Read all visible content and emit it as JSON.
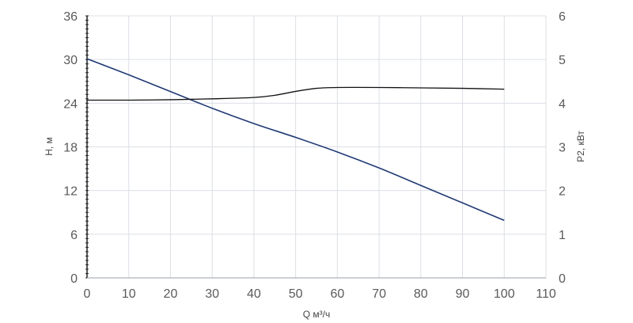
{
  "chart_data": {
    "type": "line",
    "xlabel": "Q м³/ч",
    "ylabel_left": "H, м",
    "ylabel_right": "P2, кВт",
    "x_ticks": [
      "0",
      "10",
      "20",
      "30",
      "40",
      "50",
      "60",
      "70",
      "80",
      "90",
      "100",
      "110"
    ],
    "y_left_ticks": [
      "0",
      "6",
      "12",
      "18",
      "24",
      "30",
      "36"
    ],
    "y_right_ticks": [
      "0",
      "1",
      "2",
      "3",
      "4",
      "5",
      "6"
    ],
    "xlim": [
      0,
      110
    ],
    "ylim_left": [
      0,
      36
    ],
    "ylim_right": [
      0,
      6
    ],
    "grid": true,
    "colors": {
      "head": "#1f3a77",
      "power": "#111111",
      "grid": "#dcdfe6",
      "axis": "#222222"
    },
    "series": [
      {
        "axis": "left",
        "x": [
          0,
          10,
          20,
          30,
          40,
          50,
          60,
          70,
          80,
          90,
          100
        ],
        "values": [
          30.1,
          27.9,
          25.6,
          23.3,
          21.2,
          19.3,
          17.3,
          15.1,
          12.7,
          10.3,
          7.9
        ]
      },
      {
        "axis": "right",
        "x": [
          0,
          10,
          20,
          30,
          40,
          45,
          50,
          55,
          60,
          70,
          80,
          90,
          100
        ],
        "values": [
          4.07,
          4.07,
          4.08,
          4.1,
          4.13,
          4.18,
          4.27,
          4.34,
          4.36,
          4.36,
          4.35,
          4.34,
          4.32
        ]
      }
    ]
  }
}
